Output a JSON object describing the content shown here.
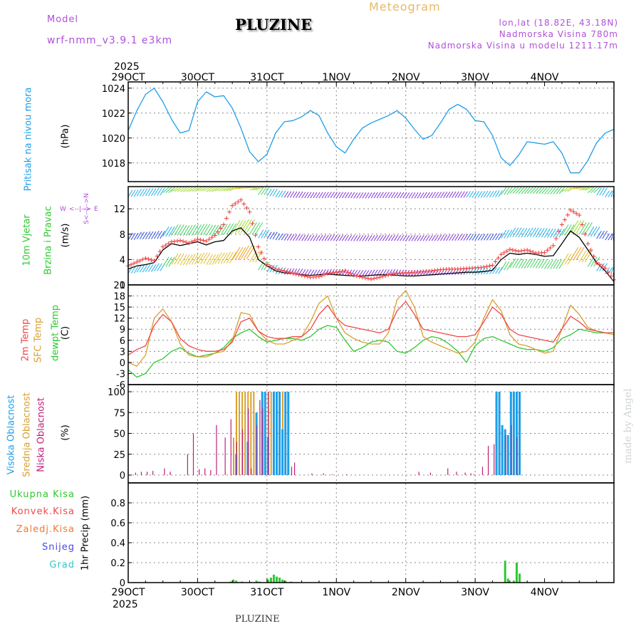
{
  "header": {
    "model_label": "Model",
    "model_name": "wrf-nmm_v3.9.1  e3km",
    "title": "PLUZINE",
    "meteogram": "Meteogram",
    "lonlat": "lon,lat (18.82E, 43.18N)",
    "elev": "Nadmorska Visina 780m",
    "elev_model": "Nadmorska Visina u modelu 1211.17m",
    "footer_title": "PLUZINE",
    "watermark": "made by Angel"
  },
  "time_axis": {
    "year_top": "2025",
    "year_bottom": "2025",
    "days": [
      "29OCT",
      "30OCT",
      "31OCT",
      "1NOV",
      "2NOV",
      "3NOV",
      "4NOV"
    ]
  },
  "colors": {
    "pressure": "#1e9ee8",
    "temp2m": "#f04848",
    "sfc": "#d8a030",
    "dewpt": "#30c830",
    "cloud_high": "#1e9ee8",
    "cloud_mid": "#d8a030",
    "cloud_low": "#c0207a",
    "precip": "#30c830",
    "wind_line": "#000000",
    "gust": "#f04848",
    "axis_label_purple": "#b050d8",
    "grid": "#888888"
  },
  "panel_labels": {
    "pressure": {
      "name": "Pritisak na nivou mora",
      "unit": "(hPa)"
    },
    "wind": {
      "name1": "10m Vjetar",
      "name2": "Brzina i Pravac",
      "unit": "(m/s)",
      "compass": {
        "n": "N",
        "s": "S",
        "e": "E",
        "w": "W",
        "ns": "<--|-->",
        "ew": "<--|-->"
      }
    },
    "temp": {
      "t2m": "2m Temp",
      "sfc": "SFC Temp",
      "dew": "dewpt Temp",
      "unit": "(C)"
    },
    "cloud": {
      "high": "Visoka Oblacnost",
      "mid": "Srednja Oblacnost",
      "low": "Niska Oblacnost",
      "unit": "(%)"
    },
    "precip": {
      "unit": "1hr Precip (mm)"
    }
  },
  "precip_legend": [
    "Ukupna Kisa",
    "Konvek.Kisa",
    "Zaledj.Kisa",
    "Snijeg",
    "Grad"
  ],
  "precip_legend_colors": [
    "#30c830",
    "#f04848",
    "#f07830",
    "#4848e8",
    "#30c8c8"
  ],
  "chart_data": [
    {
      "type": "line",
      "title": "Pritisak na nivou mora",
      "ylabel": "(hPa)",
      "ylim": [
        1016.5,
        1024.5
      ],
      "yticks": [
        1018,
        1020,
        1022,
        1024
      ],
      "x": [
        0,
        3,
        6,
        9,
        12,
        15,
        18,
        21,
        24,
        27,
        30,
        33,
        36,
        39,
        42,
        45,
        48,
        51,
        54,
        57,
        60,
        63,
        66,
        69,
        72,
        75,
        78,
        81,
        84,
        87,
        90,
        93,
        96,
        99,
        102,
        105,
        108,
        111,
        114,
        117,
        120,
        123,
        126,
        129,
        132,
        135,
        138,
        141,
        144,
        147,
        150,
        153,
        156,
        159,
        162,
        165,
        168
      ],
      "series": [
        {
          "name": "Pritisak",
          "values": [
            1020.6,
            1022.2,
            1023.5,
            1024.0,
            1022.9,
            1021.5,
            1020.4,
            1020.6,
            1022.9,
            1023.7,
            1023.3,
            1023.4,
            1022.4,
            1020.8,
            1018.9,
            1018.1,
            1018.7,
            1020.4,
            1021.3,
            1021.4,
            1021.7,
            1022.2,
            1021.8,
            1020.4,
            1019.3,
            1018.8,
            1019.9,
            1020.8,
            1021.2,
            1021.5,
            1021.8,
            1022.2,
            1021.6,
            1020.7,
            1019.9,
            1020.2,
            1021.2,
            1022.3,
            1022.7,
            1022.3,
            1021.4,
            1021.3,
            1020.2,
            1018.4,
            1017.8,
            1018.6,
            1019.7,
            1019.6,
            1019.5,
            1019.7,
            1018.8,
            1017.2,
            1017.2,
            1018.2,
            1019.6,
            1020.4,
            1020.7
          ]
        }
      ]
    },
    {
      "type": "line",
      "title": "10m Vjetar Brzina i Pravac",
      "ylabel": "(m/s)",
      "ylim": [
        0,
        15.5
      ],
      "yticks": [
        0,
        4,
        8,
        12
      ],
      "x": [
        0,
        3,
        6,
        9,
        12,
        15,
        18,
        21,
        24,
        27,
        30,
        33,
        36,
        39,
        42,
        45,
        48,
        51,
        54,
        57,
        60,
        63,
        66,
        69,
        72,
        75,
        78,
        81,
        84,
        87,
        90,
        93,
        96,
        99,
        102,
        105,
        108,
        111,
        114,
        117,
        120,
        123,
        126,
        129,
        132,
        135,
        138,
        141,
        144,
        147,
        150,
        153,
        156,
        159,
        162,
        165,
        168
      ],
      "series": [
        {
          "name": "Brzina",
          "values": [
            2.5,
            3.0,
            3.2,
            3.5,
            5.5,
            6.5,
            6.2,
            6.5,
            6.8,
            6.3,
            6.8,
            7.0,
            8.5,
            9.0,
            7.5,
            4.0,
            3.0,
            2.2,
            1.9,
            1.8,
            1.6,
            1.5,
            1.6,
            1.7,
            1.6,
            1.5,
            1.4,
            1.4,
            1.5,
            1.6,
            1.6,
            1.5,
            1.4,
            1.4,
            1.5,
            1.6,
            1.7,
            1.8,
            1.9,
            2.0,
            2.0,
            2.1,
            2.3,
            4.0,
            5.0,
            4.8,
            5.0,
            4.8,
            4.5,
            4.6,
            6.5,
            8.5,
            7.5,
            5.5,
            3.5,
            2.2,
            0.5
          ]
        },
        {
          "name": "Udari",
          "values": [
            3.0,
            3.6,
            4.2,
            3.8,
            6.0,
            6.8,
            7.0,
            6.6,
            7.2,
            6.9,
            7.8,
            9.5,
            12.5,
            13.4,
            11.5,
            6.0,
            3.2,
            2.5,
            2.2,
            1.8,
            1.5,
            1.2,
            1.3,
            1.8,
            2.0,
            2.2,
            1.5,
            1.2,
            0.9,
            1.2,
            1.6,
            1.8,
            1.9,
            2.0,
            2.1,
            2.2,
            2.4,
            2.5,
            2.5,
            2.6,
            2.7,
            2.8,
            3.1,
            4.8,
            5.6,
            5.3,
            5.5,
            5.0,
            5.1,
            6.2,
            9.5,
            11.8,
            11.0,
            6.5,
            3.5,
            2.6,
            0.8
          ]
        }
      ]
    },
    {
      "type": "line",
      "title": "2m Temp / SFC Temp / dewpt Temp",
      "ylabel": "(C)",
      "ylim": [
        -6,
        21
      ],
      "yticks": [
        -6,
        -3,
        0,
        3,
        6,
        9,
        12,
        15,
        18,
        21
      ],
      "x": [
        0,
        3,
        6,
        9,
        12,
        15,
        18,
        21,
        24,
        27,
        30,
        33,
        36,
        39,
        42,
        45,
        48,
        51,
        54,
        57,
        60,
        63,
        66,
        69,
        72,
        75,
        78,
        81,
        84,
        87,
        90,
        93,
        96,
        99,
        102,
        105,
        108,
        111,
        114,
        117,
        120,
        123,
        126,
        129,
        132,
        135,
        138,
        141,
        144,
        147,
        150,
        153,
        156,
        159,
        162,
        165,
        168
      ],
      "series": [
        {
          "name": "2m Temp",
          "values": [
            2.0,
            3.5,
            4.5,
            10.0,
            13.0,
            11.0,
            6.5,
            4.5,
            3.5,
            3.0,
            3.0,
            3.5,
            5.5,
            11.0,
            12.0,
            8.5,
            7.0,
            6.5,
            6.5,
            7.0,
            7.0,
            9.0,
            13.0,
            15.5,
            12.0,
            10.0,
            9.5,
            9.0,
            8.5,
            8.0,
            9.0,
            14.0,
            16.5,
            13.0,
            9.0,
            8.5,
            8.0,
            7.5,
            7.0,
            7.0,
            7.5,
            11.0,
            15.0,
            13.0,
            9.0,
            7.5,
            7.0,
            6.5,
            6.0,
            5.5,
            9.0,
            12.5,
            11.0,
            9.0,
            8.5,
            8.0,
            8.0
          ]
        },
        {
          "name": "SFC Temp",
          "values": [
            0.0,
            -1.0,
            2.0,
            12.0,
            14.5,
            11.0,
            5.0,
            2.0,
            1.5,
            1.5,
            2.5,
            3.0,
            6.0,
            13.5,
            13.0,
            8.5,
            6.0,
            5.0,
            5.0,
            6.0,
            7.0,
            11.0,
            16.0,
            18.0,
            12.0,
            8.0,
            6.5,
            5.5,
            5.0,
            5.0,
            8.0,
            17.0,
            19.5,
            15.0,
            7.0,
            5.5,
            4.5,
            3.5,
            2.5,
            3.0,
            5.5,
            12.0,
            17.0,
            14.0,
            7.5,
            5.0,
            4.5,
            3.5,
            2.5,
            3.0,
            9.0,
            15.5,
            13.0,
            9.5,
            8.5,
            8.0,
            7.5
          ]
        },
        {
          "name": "dewpt Temp",
          "values": [
            -2.0,
            -4.0,
            -3.0,
            0.0,
            1.0,
            3.0,
            4.0,
            2.5,
            1.5,
            2.0,
            2.5,
            4.0,
            6.5,
            8.0,
            9.0,
            7.0,
            5.5,
            6.0,
            6.5,
            6.5,
            6.0,
            7.0,
            9.0,
            10.0,
            9.5,
            6.0,
            3.0,
            4.0,
            5.5,
            6.0,
            5.5,
            3.0,
            2.5,
            4.0,
            6.0,
            7.0,
            6.5,
            5.0,
            3.0,
            0.0,
            4.5,
            6.5,
            7.0,
            6.0,
            5.0,
            4.0,
            3.5,
            3.5,
            3.0,
            4.0,
            6.5,
            7.5,
            9.0,
            8.5,
            8.0,
            8.0,
            8.0
          ]
        }
      ]
    },
    {
      "type": "bar",
      "title": "Oblacnost",
      "ylabel": "(%)",
      "ylim": [
        0,
        100
      ],
      "yticks": [
        0,
        25,
        50,
        75,
        100
      ],
      "series": [
        {
          "name": "Visoka Oblacnost",
          "x": [
            37,
            41,
            44,
            46,
            47,
            48,
            50,
            51,
            52,
            53,
            54,
            55,
            127,
            128,
            129,
            130,
            131,
            132,
            133,
            134,
            135
          ],
          "values": [
            25,
            40,
            75,
            100,
            100,
            45,
            100,
            100,
            100,
            55,
            100,
            100,
            100,
            100,
            60,
            55,
            48,
            100,
            100,
            100,
            100
          ]
        },
        {
          "name": "Srednja Oblacnost",
          "x": [
            36,
            37,
            38,
            39,
            40,
            41,
            42,
            43,
            48,
            49,
            50,
            51,
            52,
            53,
            54,
            55,
            133,
            134
          ],
          "values": [
            45,
            100,
            100,
            100,
            100,
            100,
            100,
            100,
            100,
            100,
            100,
            100,
            100,
            100,
            100,
            100,
            100,
            100
          ]
        },
        {
          "name": "Niska Oblacnost",
          "x": [
            2,
            4,
            6,
            8,
            12,
            14,
            20,
            22,
            24,
            26,
            28,
            30,
            33,
            35,
            37,
            39,
            41,
            42,
            44,
            45,
            46,
            48,
            56,
            57,
            63,
            67,
            70,
            75,
            100,
            104,
            110,
            113,
            116,
            118,
            119,
            122,
            124,
            126,
            130,
            132,
            134
          ],
          "values": [
            3,
            4,
            4,
            5,
            8,
            4,
            25,
            50,
            7,
            8,
            6,
            60,
            45,
            67,
            40,
            55,
            80,
            8,
            60,
            90,
            80,
            100,
            10,
            15,
            2,
            2,
            1,
            1,
            4,
            3,
            8,
            4,
            3,
            2,
            1,
            10,
            35,
            37,
            48,
            60,
            45
          ]
        }
      ]
    },
    {
      "type": "bar",
      "title": "1hr Precip",
      "ylabel": "1hr Precip (mm)",
      "ylim": [
        0,
        1.0
      ],
      "yticks": [
        0,
        0.2,
        0.4,
        0.6,
        0.8
      ],
      "series": [
        {
          "name": "Ukupna Kisa",
          "x": [
            35,
            36,
            37,
            39,
            44,
            45,
            48,
            49,
            50,
            51,
            52,
            53,
            54,
            56,
            130,
            131,
            133,
            134,
            135
          ],
          "values": [
            0.01,
            0.03,
            0.02,
            0.01,
            0.02,
            0.01,
            0.03,
            0.05,
            0.08,
            0.06,
            0.05,
            0.03,
            0.02,
            0.01,
            0.22,
            0.04,
            0.02,
            0.2,
            0.09
          ]
        }
      ]
    }
  ]
}
